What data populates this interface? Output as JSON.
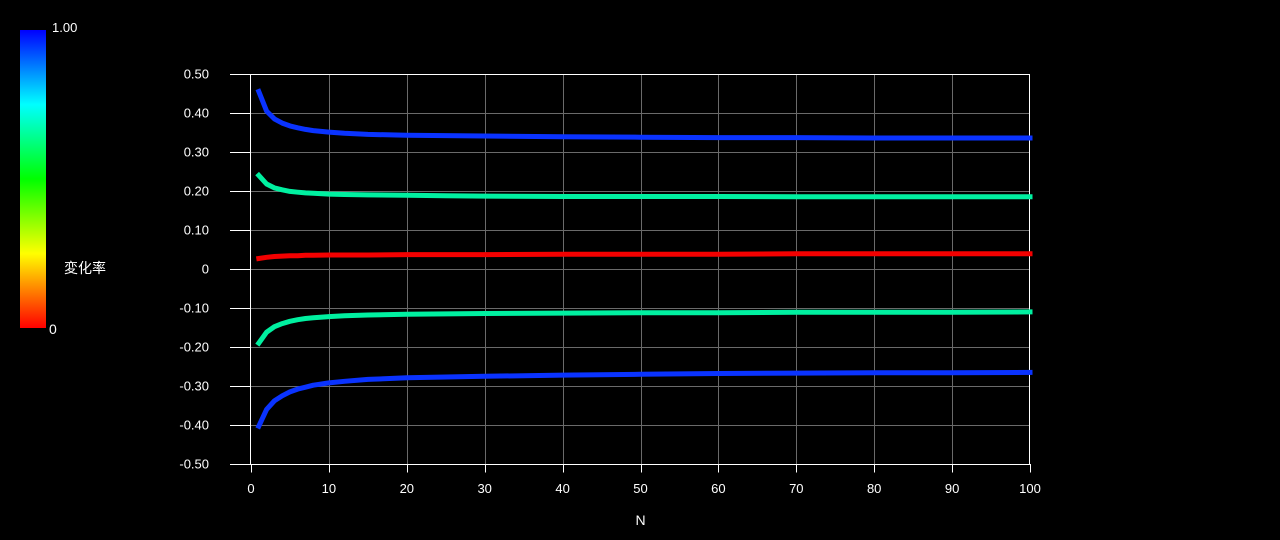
{
  "colorbar": {
    "title": "変化率",
    "max_label": "1.00",
    "min_label": "0",
    "gradient_top_to_bottom": [
      "#0000ff",
      "#00ffff",
      "#00ff00",
      "#ffff00",
      "#ff0000"
    ]
  },
  "chart_data": {
    "type": "line",
    "title": "",
    "xlabel": "N",
    "ylabel": "",
    "xlim": [
      0,
      100
    ],
    "ylim": [
      -0.5,
      0.5
    ],
    "grid": true,
    "background": "#000000",
    "text_color": "#ffffff",
    "grid_color": "#6a6a6a",
    "frame_color": "#ffffff",
    "x_tick_values": [
      0,
      10,
      20,
      30,
      40,
      50,
      60,
      70,
      80,
      90,
      100
    ],
    "x_tick_labels": [
      "0",
      "10",
      "20",
      "30",
      "40",
      "50",
      "60",
      "70",
      "80",
      "90",
      "100"
    ],
    "y_tick_values": [
      0.5,
      0.4,
      0.3,
      0.2,
      0.1,
      0,
      -0.1,
      -0.2,
      -0.3,
      -0.4,
      -0.5
    ],
    "y_tick_labels": [
      "0.50",
      "0.40",
      "0.30",
      "0.20",
      "0.10",
      "0",
      "-0.10",
      "-0.20",
      "-0.30",
      "-0.40",
      "-0.50"
    ],
    "x": [
      1,
      2,
      3,
      4,
      5,
      6,
      7,
      8,
      10,
      12,
      15,
      20,
      25,
      30,
      40,
      50,
      60,
      70,
      80,
      90,
      100
    ],
    "series": [
      {
        "name": "blue-upper",
        "color": "#0a33ff",
        "colorbar_value": 1.0,
        "values": [
          0.455,
          0.405,
          0.385,
          0.374,
          0.367,
          0.362,
          0.358,
          0.355,
          0.351,
          0.348,
          0.345,
          0.343,
          0.342,
          0.341,
          0.339,
          0.338,
          0.337,
          0.337,
          0.336,
          0.336,
          0.336
        ]
      },
      {
        "name": "green-upper",
        "color": "#00f0a0",
        "values": [
          0.24,
          0.218,
          0.208,
          0.203,
          0.199,
          0.197,
          0.195,
          0.194,
          0.192,
          0.191,
          0.19,
          0.189,
          0.188,
          0.187,
          0.186,
          0.186,
          0.186,
          0.185,
          0.185,
          0.185,
          0.185
        ]
      },
      {
        "name": "red",
        "color": "#f40000",
        "colorbar_value": 0.0,
        "values": [
          0.027,
          0.03,
          0.032,
          0.033,
          0.034,
          0.034,
          0.035,
          0.035,
          0.036,
          0.036,
          0.036,
          0.037,
          0.037,
          0.037,
          0.038,
          0.038,
          0.038,
          0.039,
          0.039,
          0.039,
          0.039
        ]
      },
      {
        "name": "green-lower",
        "color": "#00f0a0",
        "values": [
          -0.19,
          -0.162,
          -0.148,
          -0.14,
          -0.134,
          -0.13,
          -0.127,
          -0.125,
          -0.122,
          -0.12,
          -0.118,
          -0.116,
          -0.115,
          -0.114,
          -0.113,
          -0.112,
          -0.112,
          -0.111,
          -0.111,
          -0.111,
          -0.11
        ]
      },
      {
        "name": "blue-lower",
        "color": "#0a33ff",
        "values": [
          -0.403,
          -0.36,
          -0.338,
          -0.325,
          -0.315,
          -0.308,
          -0.303,
          -0.298,
          -0.292,
          -0.288,
          -0.283,
          -0.279,
          -0.277,
          -0.275,
          -0.272,
          -0.27,
          -0.268,
          -0.267,
          -0.266,
          -0.266,
          -0.265
        ]
      }
    ]
  }
}
